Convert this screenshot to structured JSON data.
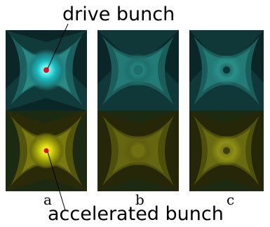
{
  "labels": {
    "top_callout": "drive bunch",
    "bottom_callout": "accelerated bunch"
  },
  "panels": [
    {
      "letter": "a",
      "marker": "center-dot",
      "top_peak": "bright",
      "bottom_peak": "bright"
    },
    {
      "letter": "b",
      "marker": "none",
      "top_peak": "diffuse",
      "bottom_peak": "diffuse"
    },
    {
      "letter": "c",
      "marker": "dark-center",
      "top_peak": "ring",
      "bottom_peak": "ring"
    }
  ],
  "colors": {
    "background_dark": "#0d3333",
    "drive_field": "#2a8f8a",
    "drive_bright": "#7de6e6",
    "accel_field": "#5e5e0e",
    "accel_bright": "#d8d80a",
    "marker": "#e0101a"
  }
}
